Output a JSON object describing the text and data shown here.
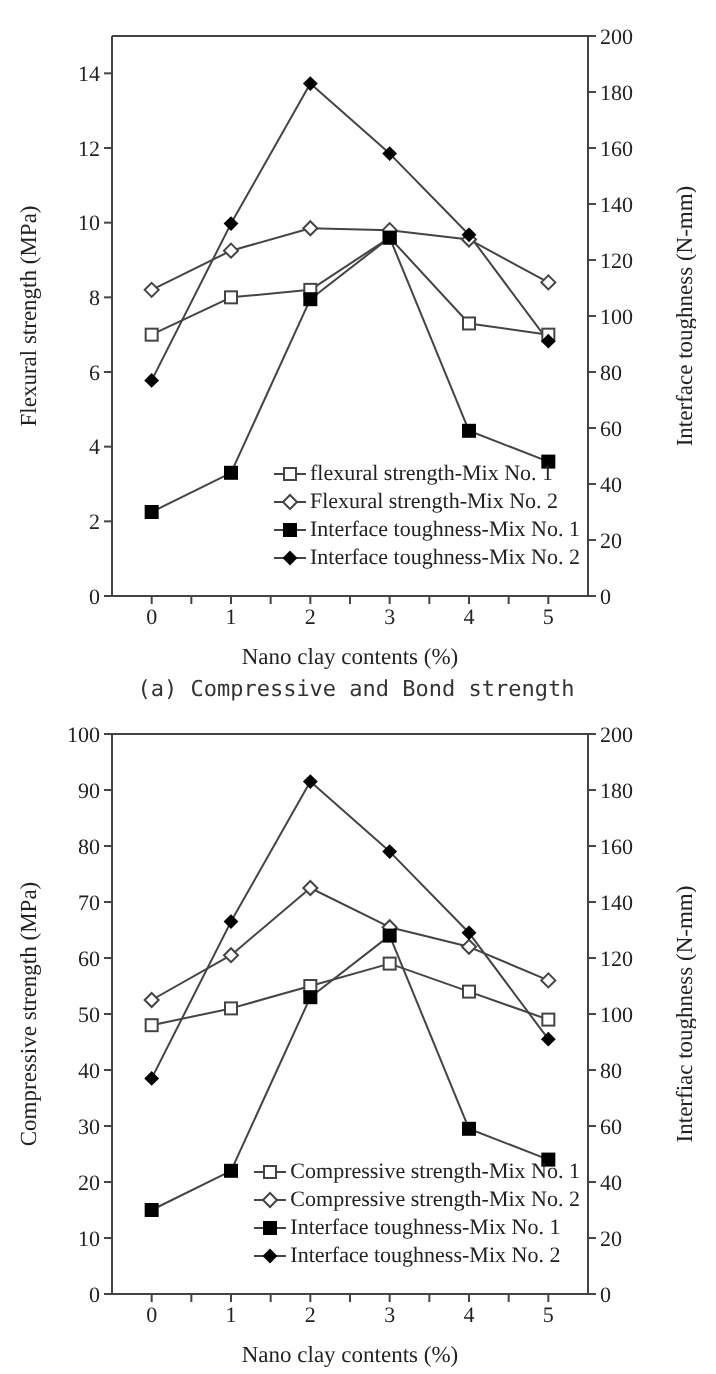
{
  "chart_data": [
    {
      "type": "line",
      "xlabel": "Nano clay contents (%)",
      "ylabel": "Flexural strength (MPa)",
      "y2label": "Interface toughness (N-mm)",
      "x": [
        0,
        1,
        2,
        3,
        4,
        5
      ],
      "xlim": [
        -0.5,
        5.5
      ],
      "xticks": [
        0,
        {
          "value": 0.5,
          "label": null
        },
        1,
        {
          "value": 1.5,
          "label": null
        },
        2,
        {
          "value": 2.5,
          "label": null
        },
        3,
        {
          "value": 3.5,
          "label": null
        },
        4,
        {
          "value": 4.5,
          "label": null
        },
        5
      ],
      "ylim": [
        0,
        15
      ],
      "yticks": [
        0,
        2,
        4,
        6,
        8,
        10,
        12,
        14
      ],
      "y2lim": [
        0,
        200
      ],
      "y2ticks": [
        0,
        20,
        40,
        60,
        80,
        100,
        120,
        140,
        160,
        180,
        200
      ],
      "grid": false,
      "legend": "bottom right",
      "annotations": [
        "(a) Compressive and Bond strength"
      ],
      "series": [
        {
          "name": "flexural strength-Mix No. 1",
          "color": "#444444",
          "marker": "square",
          "values": [
            7.0,
            8.0,
            8.2,
            9.6,
            7.3,
            7.0
          ]
        },
        {
          "name": "Flexural strength-Mix No. 2",
          "color": "#444444",
          "marker": "diamond",
          "values": [
            8.2,
            9.25,
            9.85,
            9.8,
            9.55,
            8.4
          ]
        },
        {
          "name": "Interface toughness-Mix No. 1",
          "color": "#444444",
          "marker": "square",
          "axis": "y2",
          "values": [
            30,
            44,
            106,
            128,
            59,
            48
          ]
        },
        {
          "name": "Interface toughness-Mix No. 2",
          "color": "#444444",
          "marker": "diamond",
          "axis": "y2",
          "values": [
            77,
            133,
            183,
            158,
            129,
            91
          ]
        }
      ]
    },
    {
      "type": "line",
      "xlabel": "Nano clay contents (%)",
      "ylabel": "Compressive strength (MPa)",
      "y2label": "Interfiac toughness  (N-mm)",
      "x": [
        0,
        1,
        2,
        3,
        4,
        5
      ],
      "xlim": [
        -0.5,
        5.5
      ],
      "xticks": [
        0,
        {
          "value": 0.5,
          "label": null
        },
        1,
        {
          "value": 1.5,
          "label": null
        },
        2,
        {
          "value": 2.5,
          "label": null
        },
        3,
        {
          "value": 3.5,
          "label": null
        },
        4,
        {
          "value": 4.5,
          "label": null
        },
        5
      ],
      "ylim": [
        0,
        100
      ],
      "yticks": [
        0,
        10,
        20,
        30,
        40,
        50,
        60,
        70,
        80,
        90,
        100
      ],
      "y2lim": [
        0,
        200
      ],
      "y2ticks": [
        0,
        20,
        40,
        60,
        80,
        100,
        120,
        140,
        160,
        180,
        200
      ],
      "grid": false,
      "legend": "bottom right",
      "series": [
        {
          "name": "Compressive strength-Mix No. 1",
          "color": "#444444",
          "marker": "square",
          "values": [
            48,
            51,
            55,
            59,
            54,
            49
          ]
        },
        {
          "name": "Compressive strength-Mix No. 2",
          "color": "#444444",
          "marker": "diamond",
          "values": [
            52.5,
            60.5,
            72.5,
            65.5,
            62,
            56
          ]
        },
        {
          "name": "Interface toughness-Mix No. 1",
          "color": "#444444",
          "marker": "square",
          "axis": "y2",
          "values": [
            30,
            44,
            106,
            128,
            59,
            48
          ]
        },
        {
          "name": "Interface toughness-Mix No. 2",
          "color": "#444444",
          "marker": "diamond",
          "axis": "y2",
          "values": [
            77,
            133,
            183,
            158,
            129,
            91
          ]
        }
      ]
    }
  ]
}
